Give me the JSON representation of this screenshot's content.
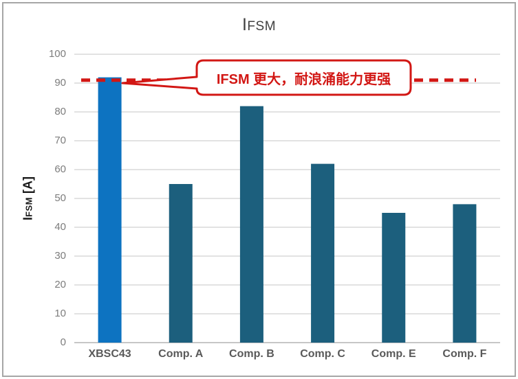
{
  "title": {
    "prefix": "I",
    "rest": "FSM"
  },
  "y_axis": {
    "label_i": "I",
    "label_sub": "FSM",
    "label_unit": " [A]"
  },
  "callout": {
    "text": "IFSM 更大，耐浪涌能力更强"
  },
  "colors": {
    "highlight_bar": "#0D73C1",
    "default_bar": "#1C5F7D",
    "annotation_red": "#D21714",
    "gridline": "#D9D9D9",
    "axis_line": "#C6C6C6",
    "tick_label": "#7C7C7C",
    "category_label": "#595959",
    "title_text": "#404040",
    "frame_border": "#A6A6A6"
  },
  "chart_data": {
    "type": "bar",
    "title": "IFSM",
    "ylabel": "IFSM [A]",
    "xlabel": "",
    "categories": [
      "XBSC43",
      "Comp. A",
      "Comp. B",
      "Comp. C",
      "Comp. E",
      "Comp. F"
    ],
    "values": [
      92,
      55,
      82,
      62,
      45,
      48
    ],
    "ylim": [
      0,
      100
    ],
    "ytick_step": 10,
    "grid": true,
    "legend": false,
    "highlight_index": 0,
    "reference_line": {
      "value": 91,
      "style": "dashed"
    },
    "annotation": "IFSM 更大，耐浪涌能力更强"
  }
}
